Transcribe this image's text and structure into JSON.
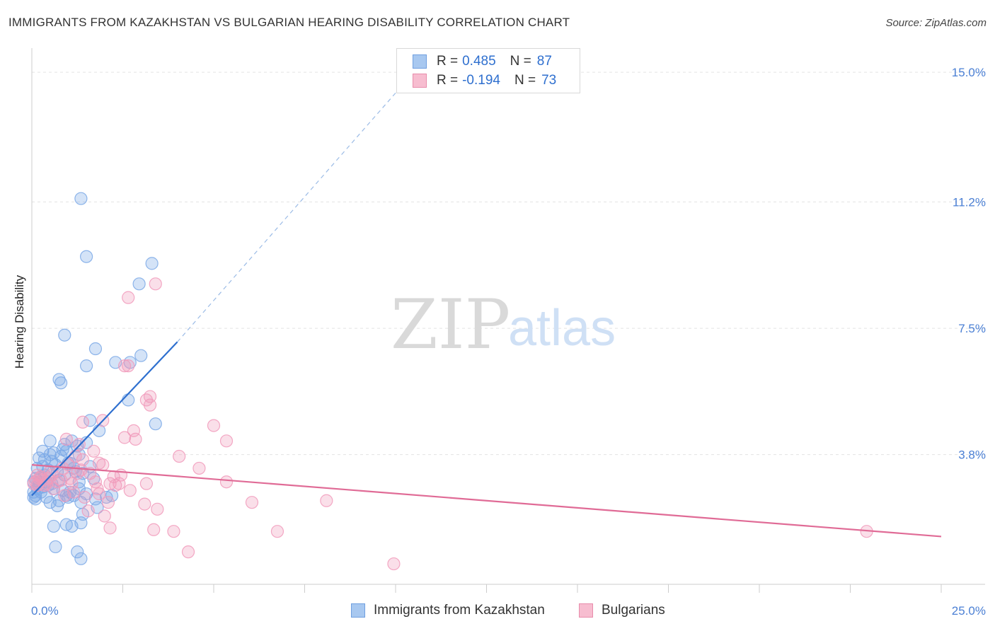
{
  "title": "IMMIGRANTS FROM KAZAKHSTAN VS BULGARIAN HEARING DISABILITY CORRELATION CHART",
  "source": "Source: ZipAtlas.com",
  "watermark": {
    "zip": "ZIP",
    "atlas": "atlas"
  },
  "legend": {
    "series": [
      {
        "r_label": "R =",
        "r_value": "0.485",
        "n_label": "N =",
        "n_value": "87",
        "color": "#a8c8f0",
        "border": "#6f9fe0"
      },
      {
        "r_label": "R =",
        "r_value": "-0.194",
        "n_label": "N =",
        "n_value": "73",
        "color": "#f7bdd0",
        "border": "#e88cab"
      }
    ]
  },
  "bottom_legend": {
    "kazakhstan": "Immigrants from Kazakhstan",
    "bulgarians": "Bulgarians"
  },
  "chart_data": {
    "type": "scatter",
    "title": "IMMIGRANTS FROM KAZAKHSTAN VS BULGARIAN HEARING DISABILITY CORRELATION CHART",
    "xlabel": "",
    "ylabel": "Hearing Disability",
    "xlim": [
      0,
      25
    ],
    "ylim": [
      0,
      15.5
    ],
    "x_tick_labels": [
      "0.0%",
      "25.0%"
    ],
    "y_ticks": [
      3.8,
      7.5,
      11.2,
      15.0
    ],
    "y_tick_labels": [
      "3.8%",
      "7.5%",
      "11.2%",
      "15.0%"
    ],
    "grid": true,
    "series": [
      {
        "name": "Immigrants from Kazakhstan",
        "color": "#7aa8e6",
        "line_color": "#2e6fcf",
        "trend": {
          "x0": 0.0,
          "y0": 2.6,
          "x1": 4.0,
          "y1": 7.1,
          "dash_to_x": 10.5,
          "dash_to_y": 15.0
        },
        "points": [
          [
            1.35,
            11.3
          ],
          [
            1.5,
            9.6
          ],
          [
            3.3,
            9.4
          ],
          [
            2.95,
            8.8
          ],
          [
            0.9,
            7.3
          ],
          [
            1.75,
            6.9
          ],
          [
            3.0,
            6.7
          ],
          [
            1.5,
            6.4
          ],
          [
            2.3,
            6.5
          ],
          [
            2.7,
            6.5
          ],
          [
            0.75,
            6.0
          ],
          [
            0.8,
            5.9
          ],
          [
            2.65,
            5.4
          ],
          [
            3.4,
            4.7
          ],
          [
            1.6,
            4.8
          ],
          [
            1.85,
            4.5
          ],
          [
            0.5,
            4.2
          ],
          [
            0.9,
            4.1
          ],
          [
            1.1,
            4.2
          ],
          [
            1.25,
            4.05
          ],
          [
            1.5,
            4.15
          ],
          [
            0.3,
            3.9
          ],
          [
            0.6,
            3.85
          ],
          [
            0.95,
            3.9
          ],
          [
            1.3,
            3.8
          ],
          [
            0.2,
            3.7
          ],
          [
            0.35,
            3.65
          ],
          [
            0.55,
            3.6
          ],
          [
            0.8,
            3.75
          ],
          [
            1.05,
            3.55
          ],
          [
            1.6,
            3.45
          ],
          [
            0.15,
            3.4
          ],
          [
            0.3,
            3.45
          ],
          [
            0.45,
            3.35
          ],
          [
            0.7,
            3.3
          ],
          [
            0.9,
            3.2
          ],
          [
            1.2,
            3.3
          ],
          [
            1.4,
            3.25
          ],
          [
            1.7,
            3.1
          ],
          [
            0.1,
            3.1
          ],
          [
            0.25,
            3.15
          ],
          [
            0.4,
            3.0
          ],
          [
            0.55,
            2.95
          ],
          [
            0.75,
            3.05
          ],
          [
            0.2,
            2.9
          ],
          [
            0.3,
            2.85
          ],
          [
            0.45,
            2.9
          ],
          [
            0.6,
            2.8
          ],
          [
            0.85,
            2.75
          ],
          [
            1.05,
            2.7
          ],
          [
            1.3,
            2.8
          ],
          [
            1.5,
            2.65
          ],
          [
            1.75,
            2.5
          ],
          [
            2.05,
            2.55
          ],
          [
            2.2,
            2.6
          ],
          [
            0.1,
            2.6
          ],
          [
            0.25,
            2.7
          ],
          [
            0.4,
            2.55
          ],
          [
            0.5,
            2.4
          ],
          [
            0.7,
            2.3
          ],
          [
            1.0,
            2.55
          ],
          [
            1.15,
            2.6
          ],
          [
            1.35,
            2.4
          ],
          [
            0.1,
            2.5
          ],
          [
            0.15,
            2.8
          ],
          [
            0.2,
            3.0
          ],
          [
            0.35,
            3.2
          ],
          [
            0.05,
            2.7
          ],
          [
            1.8,
            2.25
          ],
          [
            1.4,
            2.05
          ],
          [
            0.6,
            1.7
          ],
          [
            0.95,
            1.75
          ],
          [
            1.1,
            1.7
          ],
          [
            1.35,
            1.8
          ],
          [
            0.65,
            1.1
          ],
          [
            1.25,
            0.95
          ],
          [
            1.35,
            0.75
          ],
          [
            0.75,
            2.45
          ],
          [
            1.0,
            3.55
          ],
          [
            1.3,
            3.0
          ],
          [
            0.5,
            3.8
          ],
          [
            0.85,
            3.95
          ],
          [
            1.15,
            3.4
          ],
          [
            0.95,
            2.6
          ],
          [
            0.65,
            3.5
          ],
          [
            0.05,
            3.0
          ],
          [
            0.05,
            2.55
          ]
        ]
      },
      {
        "name": "Bulgarians",
        "color": "#f19abb",
        "line_color": "#e06b96",
        "trend": {
          "x0": 0.0,
          "y0": 3.5,
          "x1": 25.0,
          "y1": 1.4
        },
        "points": [
          [
            3.4,
            8.8
          ],
          [
            2.65,
            8.4
          ],
          [
            2.55,
            6.4
          ],
          [
            2.65,
            6.4
          ],
          [
            3.25,
            5.5
          ],
          [
            3.15,
            5.4
          ],
          [
            3.25,
            5.25
          ],
          [
            1.4,
            4.75
          ],
          [
            1.95,
            4.8
          ],
          [
            5.0,
            4.65
          ],
          [
            2.8,
            4.5
          ],
          [
            2.55,
            4.3
          ],
          [
            2.85,
            4.25
          ],
          [
            5.35,
            4.2
          ],
          [
            0.95,
            4.25
          ],
          [
            1.3,
            4.1
          ],
          [
            1.7,
            3.9
          ],
          [
            1.2,
            3.75
          ],
          [
            4.05,
            3.75
          ],
          [
            1.85,
            3.55
          ],
          [
            1.4,
            3.65
          ],
          [
            1.0,
            3.5
          ],
          [
            4.6,
            3.4
          ],
          [
            0.5,
            3.3
          ],
          [
            1.6,
            3.25
          ],
          [
            2.45,
            3.2
          ],
          [
            2.25,
            3.15
          ],
          [
            1.05,
            3.1
          ],
          [
            0.8,
            3.05
          ],
          [
            1.75,
            3.0
          ],
          [
            2.4,
            2.95
          ],
          [
            3.15,
            2.95
          ],
          [
            5.35,
            3.0
          ],
          [
            0.4,
            2.95
          ],
          [
            0.3,
            3.05
          ],
          [
            0.2,
            3.1
          ],
          [
            0.15,
            2.9
          ],
          [
            0.1,
            3.0
          ],
          [
            0.6,
            2.8
          ],
          [
            1.15,
            2.7
          ],
          [
            1.85,
            2.65
          ],
          [
            2.7,
            2.75
          ],
          [
            0.35,
            2.9
          ],
          [
            1.45,
            2.55
          ],
          [
            2.1,
            2.4
          ],
          [
            3.1,
            2.35
          ],
          [
            3.45,
            2.2
          ],
          [
            1.55,
            2.15
          ],
          [
            2.0,
            2.0
          ],
          [
            6.05,
            2.4
          ],
          [
            8.1,
            2.45
          ],
          [
            2.15,
            1.65
          ],
          [
            3.35,
            1.6
          ],
          [
            3.9,
            1.55
          ],
          [
            6.75,
            1.55
          ],
          [
            4.3,
            0.95
          ],
          [
            9.95,
            0.6
          ],
          [
            22.95,
            1.55
          ],
          [
            0.05,
            2.95
          ],
          [
            0.55,
            3.2
          ],
          [
            0.7,
            3.0
          ],
          [
            1.1,
            2.95
          ],
          [
            1.35,
            3.35
          ],
          [
            1.8,
            2.8
          ],
          [
            2.3,
            2.9
          ],
          [
            0.9,
            2.6
          ],
          [
            0.45,
            3.1
          ],
          [
            0.25,
            3.15
          ],
          [
            0.15,
            3.2
          ],
          [
            1.95,
            3.5
          ],
          [
            2.15,
            2.95
          ],
          [
            1.25,
            3.25
          ],
          [
            0.85,
            3.4
          ]
        ]
      }
    ]
  }
}
